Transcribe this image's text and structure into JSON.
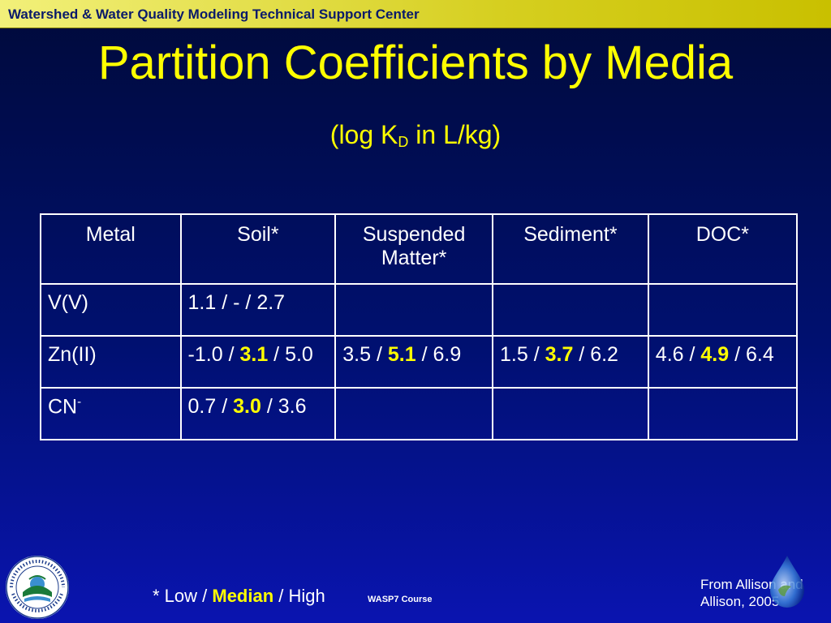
{
  "banner": {
    "text": "Watershed & Water Quality Modeling Technical Support Center"
  },
  "title": "Partition Coefficients by Media",
  "subtitle": {
    "prefix": "(log K",
    "subscript": "D",
    "suffix": " in L/kg)"
  },
  "table": {
    "headers": [
      "Metal",
      "Soil*",
      "Suspended Matter*",
      "Sediment*",
      "DOC*"
    ],
    "rows": [
      {
        "metal": "V(V)",
        "metal_sup": "",
        "cells": [
          {
            "low": "1.1",
            "median": "-",
            "high": "2.7"
          },
          null,
          null,
          null
        ]
      },
      {
        "metal": "Zn(II)",
        "metal_sup": "",
        "cells": [
          {
            "low": "-1.0",
            "median": "3.1",
            "high": "5.0"
          },
          {
            "low": "3.5",
            "median": "5.1",
            "high": "6.9"
          },
          {
            "low": "1.5",
            "median": "3.7",
            "high": "6.2"
          },
          {
            "low": "4.6",
            "median": "4.9",
            "high": "6.4"
          }
        ]
      },
      {
        "metal": "CN",
        "metal_sup": "-",
        "cells": [
          {
            "low": "0.7",
            "median": "3.0",
            "high": "3.6"
          },
          null,
          null,
          null
        ]
      }
    ]
  },
  "footnote": {
    "prefix": "* Low / ",
    "median": "Median",
    "suffix": " / High"
  },
  "course": "WASP7 Course",
  "source": {
    "line1": "From Allison and",
    "line2": "Allison, 2005"
  },
  "logos": {
    "epa": "UNITED STATES ENVIRONMENTAL PROTECTION AGENCY",
    "drop_icon": "water-drop-icon"
  },
  "colors": {
    "title": "#ffff00",
    "banner": "#d6cf20",
    "background": "#001070",
    "median": "#ffff00"
  }
}
